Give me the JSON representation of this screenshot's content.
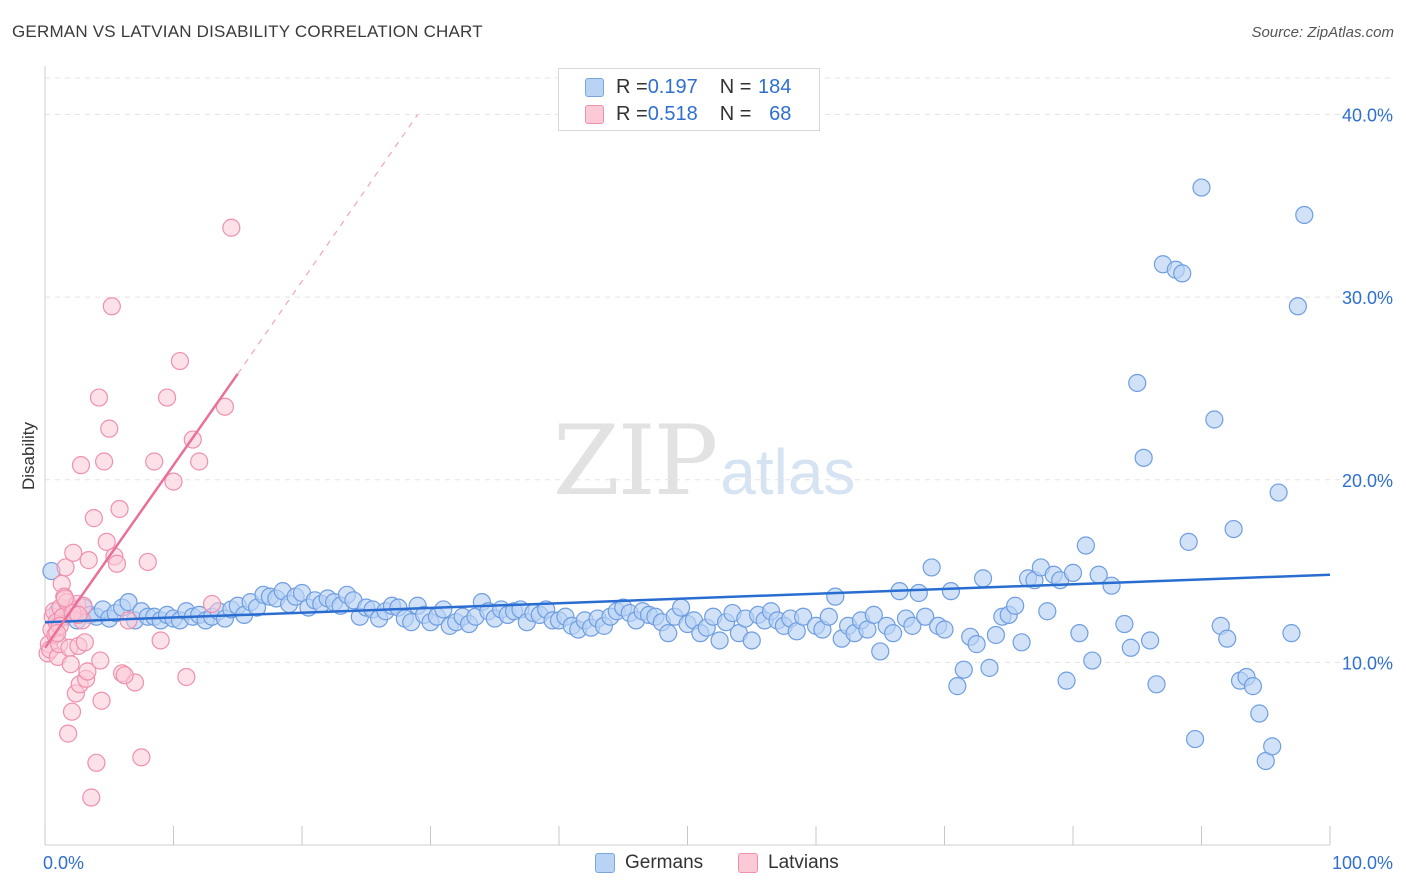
{
  "title": "GERMAN VS LATVIAN DISABILITY CORRELATION CHART",
  "source": "Source: ZipAtlas.com",
  "watermark": {
    "zip": "ZIP",
    "atlas": "atlas"
  },
  "legend_top": [
    {
      "r_label": "R = ",
      "r_value": "0.197",
      "n_label": "N = ",
      "n_value": "184"
    },
    {
      "r_label": "R = ",
      "r_value": "0.518",
      "n_label": "N = ",
      "n_value": "68"
    }
  ],
  "colors": {
    "german_fill": "#b9d3f4",
    "german_stroke": "#6f9ee0",
    "german_line": "#2a6dd1",
    "latvian_fill": "#fcc9d7",
    "latvian_stroke": "#ef90ac",
    "latvian_line": "#e8709a",
    "axis_label": "#2f6fd0",
    "grid": "#e4e4e4"
  },
  "chart_data": {
    "type": "scatter",
    "title": "GERMAN VS LATVIAN DISABILITY CORRELATION CHART",
    "xlabel": "",
    "ylabel": "Disability",
    "xlim": [
      0,
      100
    ],
    "ylim": [
      0,
      42
    ],
    "x_tick_labels": [
      "0.0%",
      "100.0%"
    ],
    "y_ticks": [
      10,
      20,
      30,
      40
    ],
    "y_tick_labels": [
      "10.0%",
      "20.0%",
      "30.0%",
      "40.0%"
    ],
    "grid": true,
    "legend_placement": "top-center",
    "series": [
      {
        "name": "Germans",
        "R": 0.197,
        "N": 184,
        "trend": {
          "x": [
            0,
            100
          ],
          "y": [
            12.2,
            14.8
          ]
        },
        "points": [
          [
            0.5,
            15.0
          ],
          [
            1.0,
            12.8
          ],
          [
            1.5,
            12.5
          ],
          [
            2.0,
            13.0
          ],
          [
            2.5,
            12.3
          ],
          [
            3.0,
            13.0
          ],
          [
            3.5,
            12.6
          ],
          [
            4.0,
            12.5
          ],
          [
            4.5,
            12.9
          ],
          [
            5.0,
            12.4
          ],
          [
            5.5,
            12.7
          ],
          [
            6.0,
            13.0
          ],
          [
            6.5,
            13.3
          ],
          [
            7.0,
            12.3
          ],
          [
            7.5,
            12.8
          ],
          [
            8.0,
            12.5
          ],
          [
            8.5,
            12.5
          ],
          [
            9.0,
            12.3
          ],
          [
            9.5,
            12.6
          ],
          [
            10.0,
            12.4
          ],
          [
            10.5,
            12.3
          ],
          [
            11.0,
            12.8
          ],
          [
            11.5,
            12.5
          ],
          [
            12.0,
            12.6
          ],
          [
            12.5,
            12.3
          ],
          [
            13.0,
            12.5
          ],
          [
            13.5,
            12.8
          ],
          [
            14.0,
            12.4
          ],
          [
            14.5,
            12.9
          ],
          [
            15.0,
            13.1
          ],
          [
            15.5,
            12.6
          ],
          [
            16.0,
            13.3
          ],
          [
            16.5,
            13.0
          ],
          [
            17.0,
            13.7
          ],
          [
            17.5,
            13.6
          ],
          [
            18.0,
            13.5
          ],
          [
            18.5,
            13.9
          ],
          [
            19.0,
            13.2
          ],
          [
            19.5,
            13.6
          ],
          [
            20.0,
            13.8
          ],
          [
            20.5,
            13.0
          ],
          [
            21.0,
            13.4
          ],
          [
            21.5,
            13.2
          ],
          [
            22.0,
            13.5
          ],
          [
            22.5,
            13.3
          ],
          [
            23.0,
            13.1
          ],
          [
            23.5,
            13.7
          ],
          [
            24.0,
            13.4
          ],
          [
            24.5,
            12.5
          ],
          [
            25.0,
            13.0
          ],
          [
            25.5,
            12.9
          ],
          [
            26.0,
            12.4
          ],
          [
            26.5,
            12.8
          ],
          [
            27.0,
            13.1
          ],
          [
            27.5,
            13.0
          ],
          [
            28.0,
            12.4
          ],
          [
            28.5,
            12.2
          ],
          [
            29.0,
            13.1
          ],
          [
            29.5,
            12.6
          ],
          [
            30.0,
            12.2
          ],
          [
            30.5,
            12.5
          ],
          [
            31.0,
            12.9
          ],
          [
            31.5,
            12.0
          ],
          [
            32.0,
            12.2
          ],
          [
            32.5,
            12.5
          ],
          [
            33.0,
            12.1
          ],
          [
            33.5,
            12.5
          ],
          [
            34.0,
            13.3
          ],
          [
            34.5,
            12.8
          ],
          [
            35.0,
            12.4
          ],
          [
            35.5,
            12.9
          ],
          [
            36.0,
            12.6
          ],
          [
            36.5,
            12.8
          ],
          [
            37.0,
            12.9
          ],
          [
            37.5,
            12.2
          ],
          [
            38.0,
            12.7
          ],
          [
            38.5,
            12.6
          ],
          [
            39.0,
            12.9
          ],
          [
            39.5,
            12.3
          ],
          [
            40.0,
            12.3
          ],
          [
            40.5,
            12.5
          ],
          [
            41.0,
            12.0
          ],
          [
            41.5,
            11.8
          ],
          [
            42.0,
            12.3
          ],
          [
            42.5,
            11.9
          ],
          [
            43.0,
            12.4
          ],
          [
            43.5,
            12.0
          ],
          [
            44.0,
            12.5
          ],
          [
            44.5,
            12.8
          ],
          [
            45.0,
            13.0
          ],
          [
            45.5,
            12.7
          ],
          [
            46.0,
            12.3
          ],
          [
            46.5,
            12.8
          ],
          [
            47.0,
            12.6
          ],
          [
            47.5,
            12.5
          ],
          [
            48.0,
            12.2
          ],
          [
            48.5,
            11.6
          ],
          [
            49.0,
            12.5
          ],
          [
            49.5,
            13.0
          ],
          [
            50.0,
            12.1
          ],
          [
            50.5,
            12.3
          ],
          [
            51.0,
            11.6
          ],
          [
            51.5,
            11.9
          ],
          [
            52.0,
            12.5
          ],
          [
            52.5,
            11.2
          ],
          [
            53.0,
            12.2
          ],
          [
            53.5,
            12.7
          ],
          [
            54.0,
            11.6
          ],
          [
            54.5,
            12.4
          ],
          [
            55.0,
            11.2
          ],
          [
            55.5,
            12.6
          ],
          [
            56.0,
            12.3
          ],
          [
            56.5,
            12.8
          ],
          [
            57.0,
            12.3
          ],
          [
            57.5,
            12.0
          ],
          [
            58.0,
            12.4
          ],
          [
            58.5,
            11.7
          ],
          [
            59.0,
            12.5
          ],
          [
            60.0,
            12.0
          ],
          [
            60.5,
            11.8
          ],
          [
            61.0,
            12.5
          ],
          [
            61.5,
            13.6
          ],
          [
            62.0,
            11.3
          ],
          [
            62.5,
            12.0
          ],
          [
            63.0,
            11.6
          ],
          [
            63.5,
            12.3
          ],
          [
            64.0,
            11.8
          ],
          [
            64.5,
            12.6
          ],
          [
            65.0,
            10.6
          ],
          [
            65.5,
            12.0
          ],
          [
            66.0,
            11.6
          ],
          [
            66.5,
            13.9
          ],
          [
            67.0,
            12.4
          ],
          [
            67.5,
            12.0
          ],
          [
            68.0,
            13.8
          ],
          [
            68.5,
            12.5
          ],
          [
            69.0,
            15.2
          ],
          [
            69.5,
            12.0
          ],
          [
            70.0,
            11.8
          ],
          [
            70.5,
            13.9
          ],
          [
            71.0,
            8.7
          ],
          [
            71.5,
            9.6
          ],
          [
            72.0,
            11.4
          ],
          [
            72.5,
            11.0
          ],
          [
            73.0,
            14.6
          ],
          [
            73.5,
            9.7
          ],
          [
            74.0,
            11.5
          ],
          [
            74.5,
            12.5
          ],
          [
            75.0,
            12.6
          ],
          [
            75.5,
            13.1
          ],
          [
            76.0,
            11.1
          ],
          [
            76.5,
            14.6
          ],
          [
            77.0,
            14.5
          ],
          [
            77.5,
            15.2
          ],
          [
            78.0,
            12.8
          ],
          [
            78.5,
            14.8
          ],
          [
            79.0,
            14.5
          ],
          [
            79.5,
            9.0
          ],
          [
            80.0,
            14.9
          ],
          [
            80.5,
            11.6
          ],
          [
            81.0,
            16.4
          ],
          [
            81.5,
            10.1
          ],
          [
            82.0,
            14.8
          ],
          [
            83.0,
            14.2
          ],
          [
            84.0,
            12.1
          ],
          [
            84.5,
            10.8
          ],
          [
            85.0,
            25.3
          ],
          [
            85.5,
            21.2
          ],
          [
            86.0,
            11.2
          ],
          [
            86.5,
            8.8
          ],
          [
            87.0,
            31.8
          ],
          [
            88.0,
            31.5
          ],
          [
            88.5,
            31.3
          ],
          [
            89.0,
            16.6
          ],
          [
            89.5,
            5.8
          ],
          [
            90.0,
            36.0
          ],
          [
            91.0,
            23.3
          ],
          [
            91.5,
            12.0
          ],
          [
            92.0,
            11.3
          ],
          [
            92.5,
            17.3
          ],
          [
            93.0,
            9.0
          ],
          [
            93.5,
            9.2
          ],
          [
            94.0,
            8.7
          ],
          [
            94.5,
            7.2
          ],
          [
            95.0,
            4.6
          ],
          [
            95.5,
            5.4
          ],
          [
            96.0,
            19.3
          ],
          [
            97.0,
            11.6
          ],
          [
            97.5,
            29.5
          ],
          [
            98.0,
            34.5
          ]
        ]
      },
      {
        "name": "Latvians",
        "R": 0.518,
        "N": 68,
        "trend": {
          "x": [
            0,
            15
          ],
          "y": [
            10.8,
            25.8
          ],
          "dashed_extension_to": [
            29,
            40
          ]
        },
        "points": [
          [
            0.2,
            10.5
          ],
          [
            0.3,
            11.0
          ],
          [
            0.4,
            10.7
          ],
          [
            0.5,
            11.8
          ],
          [
            0.6,
            12.5
          ],
          [
            0.7,
            12.8
          ],
          [
            0.8,
            11.5
          ],
          [
            0.9,
            12.2
          ],
          [
            1.0,
            10.3
          ],
          [
            1.1,
            11.0
          ],
          [
            1.2,
            13.0
          ],
          [
            1.3,
            14.3
          ],
          [
            1.4,
            12.5
          ],
          [
            1.5,
            13.6
          ],
          [
            1.6,
            15.2
          ],
          [
            1.7,
            13.3
          ],
          [
            1.8,
            6.1
          ],
          [
            1.9,
            10.8
          ],
          [
            2.0,
            9.9
          ],
          [
            2.1,
            7.3
          ],
          [
            2.2,
            16.0
          ],
          [
            2.3,
            12.8
          ],
          [
            2.4,
            8.3
          ],
          [
            2.5,
            13.2
          ],
          [
            2.6,
            10.9
          ],
          [
            2.7,
            8.8
          ],
          [
            2.8,
            20.8
          ],
          [
            2.9,
            12.3
          ],
          [
            3.0,
            13.1
          ],
          [
            3.2,
            9.1
          ],
          [
            3.4,
            15.6
          ],
          [
            3.6,
            2.6
          ],
          [
            3.8,
            17.9
          ],
          [
            4.0,
            4.5
          ],
          [
            4.2,
            24.5
          ],
          [
            4.4,
            7.9
          ],
          [
            4.6,
            21.0
          ],
          [
            4.8,
            16.6
          ],
          [
            5.0,
            22.8
          ],
          [
            5.2,
            29.5
          ],
          [
            5.4,
            15.8
          ],
          [
            5.6,
            15.4
          ],
          [
            5.8,
            18.4
          ],
          [
            6.0,
            9.4
          ],
          [
            6.5,
            12.3
          ],
          [
            7.0,
            8.9
          ],
          [
            7.5,
            4.8
          ],
          [
            8.0,
            15.5
          ],
          [
            8.5,
            21.0
          ],
          [
            9.0,
            11.2
          ],
          [
            9.5,
            24.5
          ],
          [
            10.0,
            19.9
          ],
          [
            10.5,
            26.5
          ],
          [
            11.0,
            9.2
          ],
          [
            11.5,
            22.2
          ],
          [
            12.0,
            21.0
          ],
          [
            13.0,
            13.2
          ],
          [
            14.0,
            24.0
          ],
          [
            14.5,
            33.8
          ],
          [
            3.3,
            9.5
          ],
          [
            1.15,
            12.0
          ],
          [
            0.95,
            11.6
          ],
          [
            2.15,
            12.7
          ],
          [
            3.1,
            11.1
          ],
          [
            4.3,
            10.1
          ],
          [
            6.2,
            9.3
          ],
          [
            1.55,
            13.5
          ],
          [
            2.6,
            12.6
          ]
        ]
      }
    ]
  },
  "legend_bottom": [
    "Germans",
    "Latvians"
  ]
}
